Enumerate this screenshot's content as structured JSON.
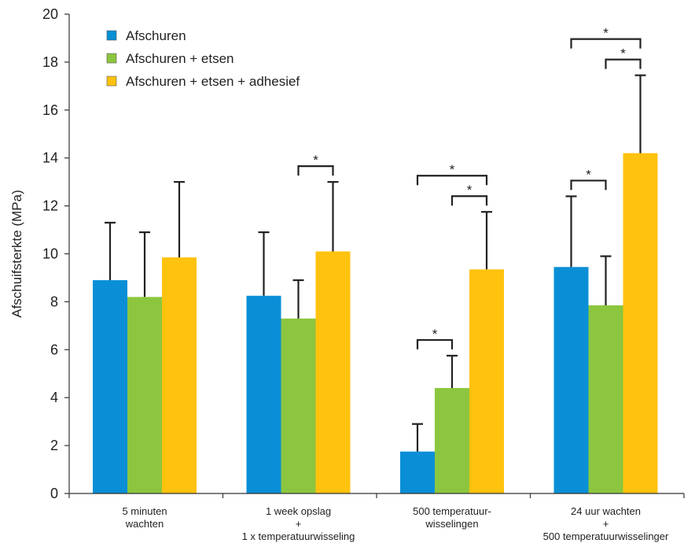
{
  "chart_data": {
    "type": "bar",
    "title": "",
    "xlabel": "",
    "ylabel": "Afschuifsterkte (MPa)",
    "ylim": [
      0,
      20
    ],
    "yticks": [
      0,
      2,
      4,
      6,
      8,
      10,
      12,
      14,
      16,
      18,
      20
    ],
    "legend_position": "top-left",
    "categories": [
      [
        "5 minuten",
        "wachten"
      ],
      [
        "1 week opslag",
        "+",
        "1 x temperatuurwisseling"
      ],
      [
        "500 temperatuur-",
        "wisselingen"
      ],
      [
        "24 uur wachten",
        "+",
        "500 temperatuurwisselinger"
      ]
    ],
    "series": [
      {
        "name": "Afschuren",
        "color": "#0a8fd6",
        "values": [
          8.9,
          8.25,
          1.75,
          9.45
        ],
        "error_top": [
          11.3,
          10.9,
          2.9,
          12.4
        ]
      },
      {
        "name": "Afschuren + etsen",
        "color": "#8cc63f",
        "values": [
          8.2,
          7.3,
          4.4,
          7.85
        ],
        "error_top": [
          10.9,
          8.9,
          5.75,
          9.9
        ]
      },
      {
        "name": "Afschuren + etsen + adhesief",
        "color": "#ffc20e",
        "values": [
          9.85,
          10.1,
          9.35,
          14.2
        ],
        "error_top": [
          13.0,
          13.0,
          11.75,
          17.45
        ]
      }
    ],
    "significance": [
      {
        "group": 1,
        "from": 1,
        "to": 2,
        "label": "*"
      },
      {
        "group": 2,
        "from": 0,
        "to": 1,
        "label": "*"
      },
      {
        "group": 2,
        "from": 1,
        "to": 2,
        "label": "*"
      },
      {
        "group": 2,
        "from": 0,
        "to": 2,
        "label": "*"
      },
      {
        "group": 3,
        "from": 0,
        "to": 1,
        "label": "*"
      },
      {
        "group": 3,
        "from": 1,
        "to": 2,
        "label": "*"
      },
      {
        "group": 3,
        "from": 0,
        "to": 2,
        "label": "*"
      }
    ]
  }
}
